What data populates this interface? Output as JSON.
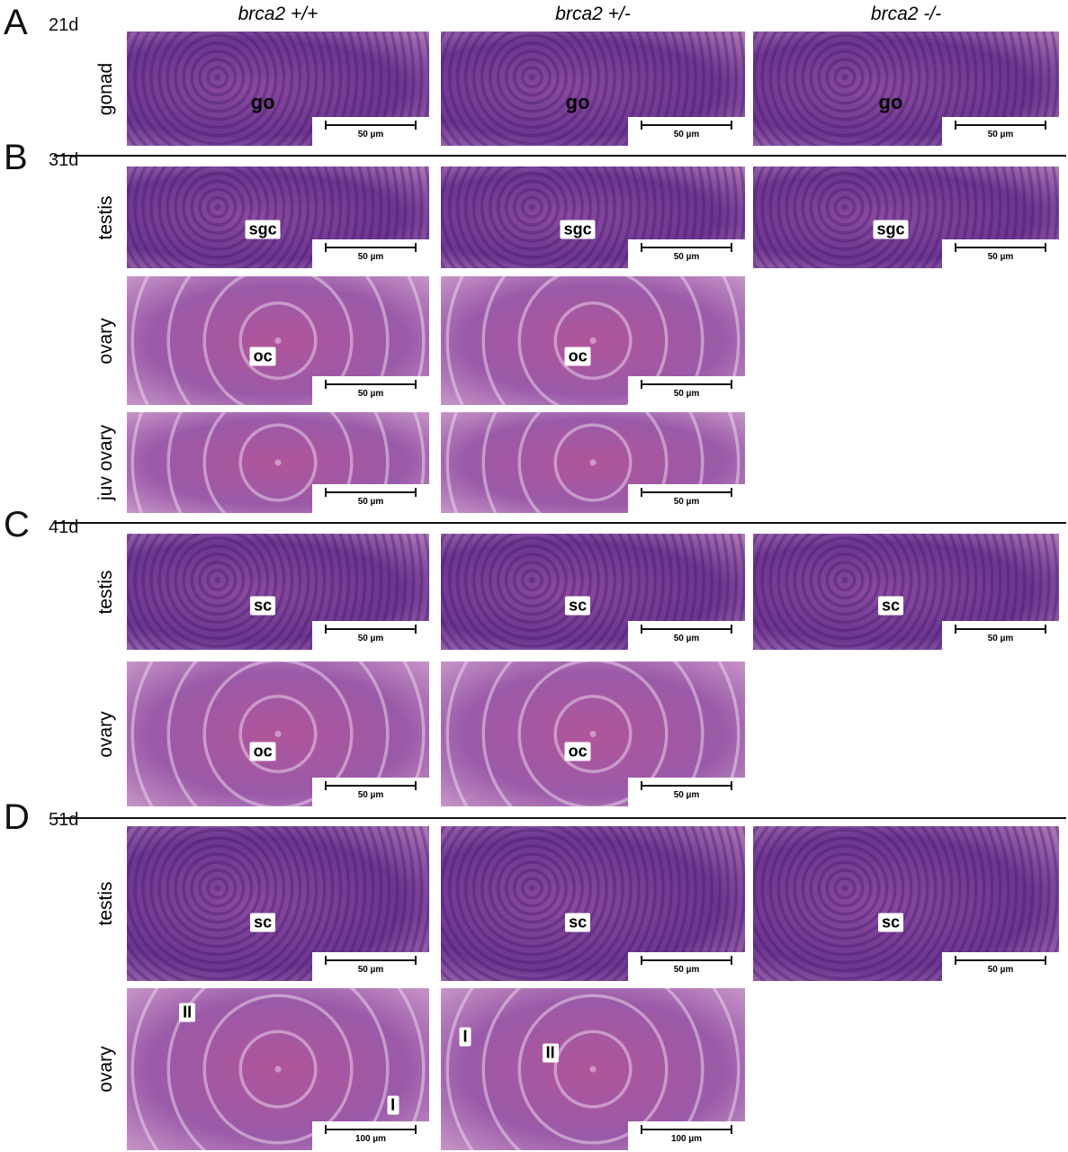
{
  "columns": [
    "brca2 +/+",
    "brca2 +/-",
    "brca2 -/-"
  ],
  "sections": [
    {
      "letter": "A",
      "age": "21d",
      "rows": [
        {
          "label": "gonad",
          "panels": [
            {
              "labels": [
                "go"
              ],
              "scale": "50 µm"
            },
            {
              "labels": [
                "go"
              ],
              "scale": "50 µm"
            },
            {
              "labels": [
                "go"
              ],
              "scale": "50 µm"
            }
          ]
        }
      ]
    },
    {
      "letter": "B",
      "age": "31d",
      "rows": [
        {
          "label": "testis",
          "panels": [
            {
              "labels": [
                "sgc"
              ],
              "scale": "50 µm"
            },
            {
              "labels": [
                "sgc"
              ],
              "scale": "50 µm"
            },
            {
              "labels": [
                "sgc"
              ],
              "scale": "50 µm"
            }
          ]
        },
        {
          "label": "ovary",
          "panels": [
            {
              "labels": [
                "oc"
              ],
              "scale": "50 µm"
            },
            {
              "labels": [
                "oc"
              ],
              "scale": "50 µm"
            }
          ]
        },
        {
          "label": "juv ovary",
          "panels": [
            {
              "labels": [],
              "scale": "50 µm"
            },
            {
              "labels": [],
              "scale": "50 µm"
            }
          ]
        }
      ]
    },
    {
      "letter": "C",
      "age": "41d",
      "rows": [
        {
          "label": "testis",
          "panels": [
            {
              "labels": [
                "sc"
              ],
              "scale": "50 µm"
            },
            {
              "labels": [
                "sc"
              ],
              "scale": "50 µm"
            },
            {
              "labels": [
                "sc"
              ],
              "scale": "50 µm"
            }
          ]
        },
        {
          "label": "ovary",
          "panels": [
            {
              "labels": [
                "oc"
              ],
              "scale": "50 µm"
            },
            {
              "labels": [
                "oc"
              ],
              "scale": "50 µm"
            }
          ]
        }
      ]
    },
    {
      "letter": "D",
      "age": "51d",
      "rows": [
        {
          "label": "testis",
          "panels": [
            {
              "labels": [
                "sc"
              ],
              "scale": "50 µm"
            },
            {
              "labels": [
                "sc"
              ],
              "scale": "50 µm"
            },
            {
              "labels": [
                "sc"
              ],
              "scale": "50 µm"
            }
          ]
        },
        {
          "label": "ovary",
          "panels": [
            {
              "labels": [
                "II",
                "I"
              ],
              "scale": "100 µm"
            },
            {
              "labels": [
                "I",
                "II"
              ],
              "scale": "100 µm"
            }
          ]
        }
      ]
    }
  ]
}
